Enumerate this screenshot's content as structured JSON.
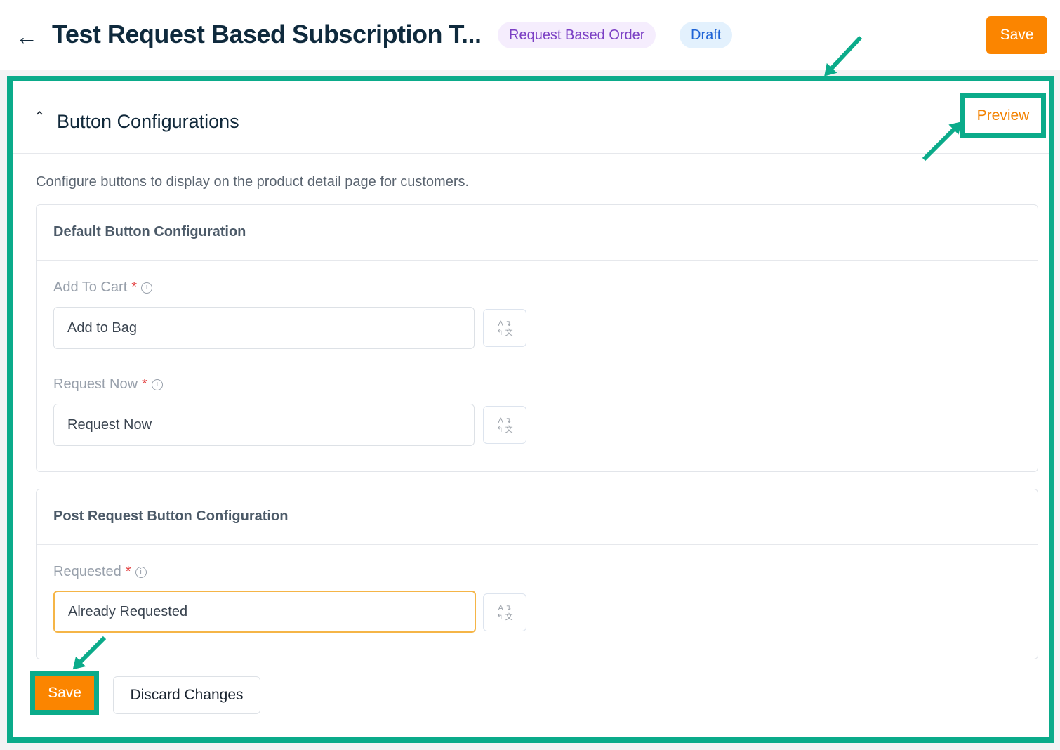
{
  "header": {
    "back_icon": "arrow-left-icon",
    "title": "Test Request Based Subscription T...",
    "badges": [
      "Request Based Order",
      "Draft"
    ],
    "save_label": "Save"
  },
  "section": {
    "title": "Button Configurations",
    "preview_label": "Preview",
    "description": "Configure buttons to display on the product detail page for customers."
  },
  "default_card": {
    "title": "Default Button Configuration",
    "fields": [
      {
        "label": "Add To Cart",
        "required": "*",
        "value": "Add to Bag"
      },
      {
        "label": "Request Now",
        "required": "*",
        "value": "Request Now"
      }
    ]
  },
  "post_card": {
    "title": "Post Request Button Configuration",
    "fields": [
      {
        "label": "Requested",
        "required": "*",
        "value": "Already Requested"
      }
    ]
  },
  "footer": {
    "save_label": "Save",
    "discard_label": "Discard Changes"
  },
  "colors": {
    "accent": "#fb8500",
    "annotation": "#0bab8a"
  }
}
